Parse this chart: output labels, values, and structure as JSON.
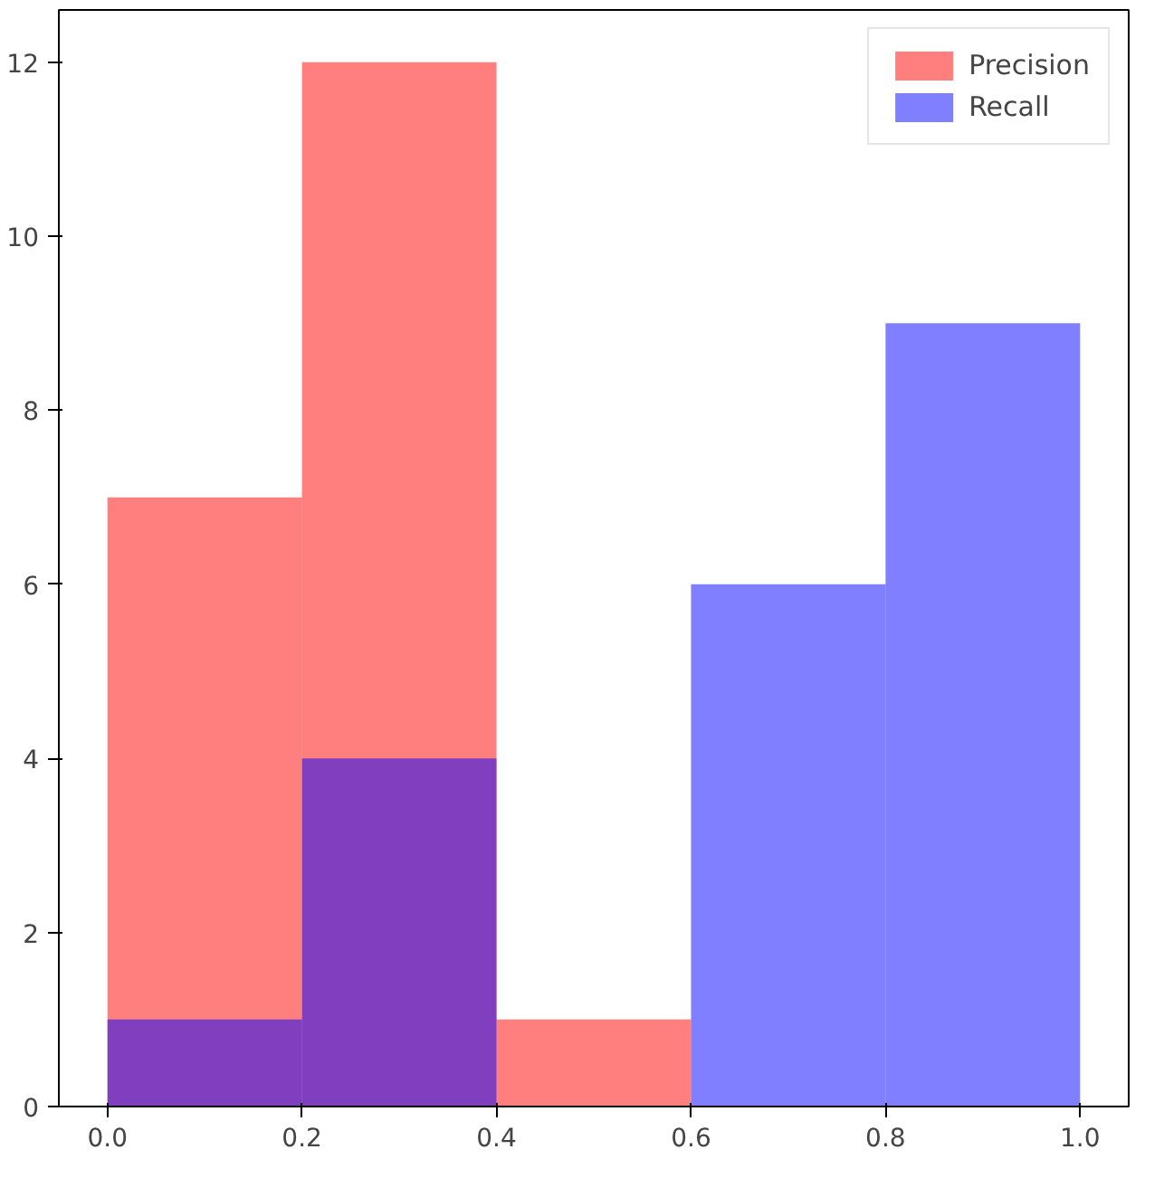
{
  "chart_data": {
    "type": "histogram",
    "bins": [
      0.0,
      0.2,
      0.4,
      0.6,
      0.8,
      1.0
    ],
    "series": [
      {
        "name": "Precision",
        "color": "#ff0000",
        "values": [
          7,
          12,
          1,
          0,
          0
        ]
      },
      {
        "name": "Recall",
        "color": "#0000ff",
        "values": [
          1,
          4,
          0,
          6,
          9
        ]
      }
    ],
    "xlim": [
      -0.05,
      1.05
    ],
    "ylim": [
      0,
      12.6
    ],
    "xticks": [
      {
        "value": 0,
        "label": "0.0"
      },
      {
        "value": 0.2,
        "label": "0.2"
      },
      {
        "value": 0.4,
        "label": "0.4"
      },
      {
        "value": 0.6,
        "label": "0.6"
      },
      {
        "value": 0.8,
        "label": "0.8"
      },
      {
        "value": 1,
        "label": "1.0"
      }
    ],
    "yticks": [
      0,
      2,
      4,
      6,
      8,
      10,
      12
    ],
    "grid": false,
    "legend": "top right"
  }
}
